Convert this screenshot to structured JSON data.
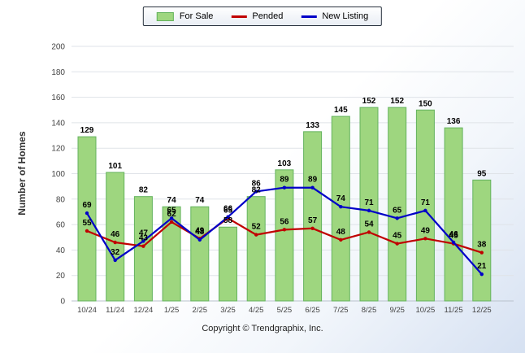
{
  "chart_data": {
    "type": "bar",
    "title": "",
    "ylabel": "Number of Homes",
    "ylim": [
      0,
      200
    ],
    "ytick_step": 20,
    "grid": true,
    "legend_position": "top-center",
    "categories": [
      "10/24",
      "11/24",
      "12/24",
      "1/25",
      "2/25",
      "3/25",
      "4/25",
      "5/25",
      "6/25",
      "7/25",
      "8/25",
      "9/25",
      "10/25",
      "11/25",
      "12/25"
    ],
    "series": [
      {
        "name": "For Sale",
        "type": "bar",
        "color": "#9ED67F",
        "border_color": "#64B35E",
        "values": [
          129,
          101,
          82,
          74,
          74,
          58,
          82,
          103,
          133,
          145,
          152,
          152,
          150,
          136,
          95
        ]
      },
      {
        "name": "Pended",
        "type": "line",
        "color": "#C00000",
        "values": [
          55,
          46,
          43,
          62,
          49,
          65,
          52,
          56,
          57,
          48,
          54,
          45,
          49,
          45,
          38
        ]
      },
      {
        "name": "New Listing",
        "type": "line",
        "color": "#0000C8",
        "values": [
          69,
          32,
          47,
          65,
          48,
          66,
          86,
          89,
          89,
          74,
          71,
          65,
          71,
          46,
          21
        ]
      }
    ]
  },
  "footer": {
    "copyright_text": "Copyright © Trendgraphix, Inc."
  }
}
